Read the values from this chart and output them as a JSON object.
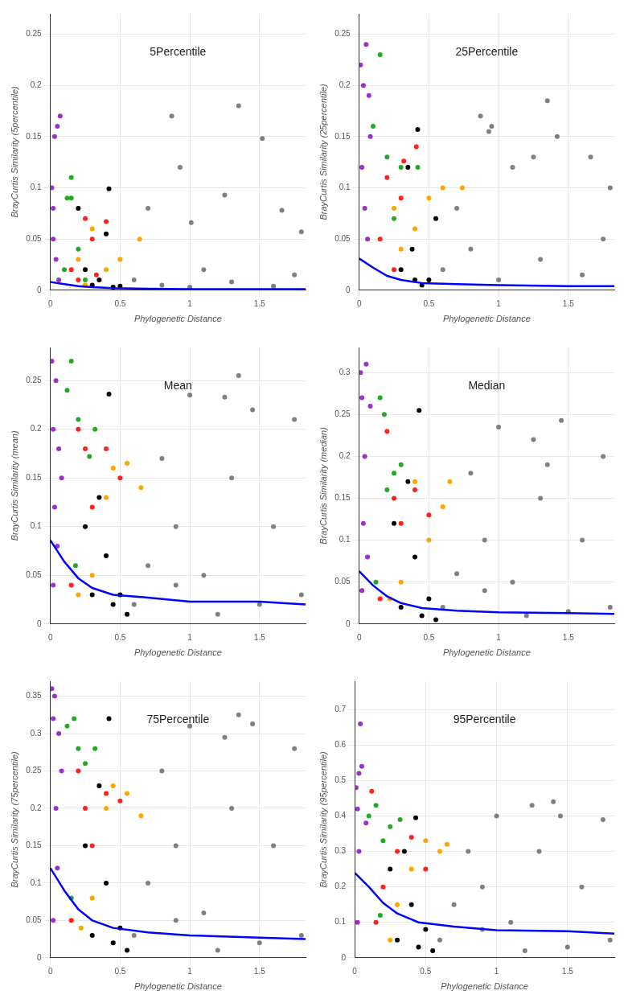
{
  "chart_data": [
    {
      "type": "scatter",
      "title": "5Percentile",
      "xlabel": "Phylogenetic Distance",
      "ylabel": "BrayCurtis Similarity (5percentile)",
      "xlim": [
        0,
        1.83
      ],
      "xticks": [
        0,
        0.5,
        1,
        1.5
      ],
      "ylim": [
        0,
        0.27
      ],
      "yticks": [
        0,
        0.05,
        0.1,
        0.15,
        0.2,
        0.25
      ],
      "grid": true,
      "marker": "circle",
      "series": [
        {
          "type": "scatter",
          "color": "#808080",
          "x": [
            0.6,
            0.8,
            0.87,
            0.93,
            1.01,
            1.1,
            1.25,
            1.35,
            1.52,
            1.66,
            1.8,
            0.7,
            1.0,
            1.3,
            1.6,
            1.75
          ],
          "values": [
            0.01,
            0.005,
            0.17,
            0.12,
            0.066,
            0.02,
            0.093,
            0.18,
            0.148,
            0.078,
            0.057,
            0.08,
            0.003,
            0.008,
            0.004,
            0.015
          ]
        },
        {
          "type": "scatter",
          "color": "#000000",
          "x": [
            0.3,
            0.35,
            0.4,
            0.42,
            0.45,
            0.5,
            0.25,
            0.2
          ],
          "values": [
            0.005,
            0.01,
            0.055,
            0.099,
            0.003,
            0.004,
            0.02,
            0.08
          ]
        },
        {
          "type": "scatter",
          "color": "#ffa500",
          "x": [
            0.2,
            0.3,
            0.4,
            0.5,
            0.64,
            0.25
          ],
          "values": [
            0.03,
            0.06,
            0.02,
            0.03,
            0.05,
            0.005
          ]
        },
        {
          "type": "scatter",
          "color": "#ff2020",
          "x": [
            0.15,
            0.25,
            0.3,
            0.4,
            0.2,
            0.33
          ],
          "values": [
            0.02,
            0.07,
            0.05,
            0.067,
            0.01,
            0.015
          ]
        },
        {
          "type": "scatter",
          "color": "#22aa22",
          "x": [
            0.12,
            0.15,
            0.15,
            0.2,
            0.1,
            0.25
          ],
          "values": [
            0.09,
            0.11,
            0.09,
            0.04,
            0.02,
            0.01
          ]
        },
        {
          "type": "scatter",
          "color": "#9932cc",
          "x": [
            0.01,
            0.02,
            0.03,
            0.05,
            0.07,
            0.02,
            0.04,
            0.06
          ],
          "values": [
            0.1,
            0.08,
            0.15,
            0.16,
            0.17,
            0.05,
            0.03,
            0.01
          ]
        },
        {
          "type": "line",
          "marker": "none",
          "color": "#0000ff",
          "x": [
            0,
            0.1,
            0.2,
            0.3,
            0.45,
            0.7,
            1.0,
            1.5,
            1.83
          ],
          "values": [
            0.008,
            0.006,
            0.004,
            0.003,
            0.002,
            0.0015,
            0.001,
            0.001,
            0.001
          ]
        }
      ]
    },
    {
      "type": "scatter",
      "title": "25Percentile",
      "xlabel": "Phylogenetic Distance",
      "ylabel": "BrayCurtis Similarity (25percentile)",
      "xlim": [
        0,
        1.83
      ],
      "xticks": [
        0,
        0.5,
        1,
        1.5
      ],
      "ylim": [
        0,
        0.27
      ],
      "yticks": [
        0,
        0.05,
        0.1,
        0.15,
        0.2,
        0.25
      ],
      "grid": true,
      "marker": "circle",
      "series": [
        {
          "type": "scatter",
          "color": "#808080",
          "x": [
            0.6,
            0.8,
            0.87,
            0.93,
            0.95,
            1.1,
            1.25,
            1.35,
            1.42,
            1.66,
            1.8,
            0.7,
            1.0,
            1.3,
            1.6,
            1.75
          ],
          "values": [
            0.02,
            0.04,
            0.17,
            0.155,
            0.16,
            0.12,
            0.13,
            0.185,
            0.15,
            0.13,
            0.1,
            0.08,
            0.01,
            0.03,
            0.015,
            0.05
          ]
        },
        {
          "type": "scatter",
          "color": "#000000",
          "x": [
            0.3,
            0.35,
            0.4,
            0.42,
            0.45,
            0.5,
            0.55,
            0.38
          ],
          "values": [
            0.02,
            0.12,
            0.01,
            0.157,
            0.005,
            0.01,
            0.07,
            0.04
          ]
        },
        {
          "type": "scatter",
          "color": "#ffa500",
          "x": [
            0.25,
            0.3,
            0.4,
            0.5,
            0.6,
            0.74
          ],
          "values": [
            0.08,
            0.04,
            0.06,
            0.09,
            0.1,
            0.1
          ]
        },
        {
          "type": "scatter",
          "color": "#ff2020",
          "x": [
            0.15,
            0.2,
            0.3,
            0.32,
            0.41,
            0.25
          ],
          "values": [
            0.05,
            0.11,
            0.09,
            0.126,
            0.14,
            0.02
          ]
        },
        {
          "type": "scatter",
          "color": "#22aa22",
          "x": [
            0.1,
            0.15,
            0.2,
            0.25,
            0.3,
            0.42
          ],
          "values": [
            0.16,
            0.23,
            0.13,
            0.07,
            0.12,
            0.12
          ]
        },
        {
          "type": "scatter",
          "color": "#9932cc",
          "x": [
            0.01,
            0.03,
            0.05,
            0.07,
            0.02,
            0.04,
            0.06,
            0.08
          ],
          "values": [
            0.22,
            0.2,
            0.24,
            0.19,
            0.12,
            0.08,
            0.05,
            0.15
          ]
        },
        {
          "type": "line",
          "marker": "none",
          "color": "#0000ff",
          "x": [
            0,
            0.1,
            0.2,
            0.3,
            0.45,
            0.7,
            1.0,
            1.5,
            1.83
          ],
          "values": [
            0.031,
            0.022,
            0.014,
            0.01,
            0.007,
            0.006,
            0.005,
            0.004,
            0.004
          ]
        }
      ]
    },
    {
      "type": "scatter",
      "title": "Mean",
      "xlabel": "Phylogenetic Distance",
      "ylabel": "BrayCurtis Similarity (mean)",
      "xlim": [
        0,
        1.83
      ],
      "xticks": [
        0,
        0.5,
        1,
        1.5
      ],
      "ylim": [
        0,
        0.284
      ],
      "yticks": [
        0,
        0.05,
        0.1,
        0.15,
        0.2,
        0.25
      ],
      "grid": true,
      "marker": "circle",
      "series": [
        {
          "type": "scatter",
          "color": "#808080",
          "x": [
            0.6,
            0.8,
            0.9,
            1.0,
            1.1,
            1.25,
            1.35,
            1.45,
            1.6,
            1.75,
            1.8,
            0.7,
            1.2,
            1.5,
            1.3,
            0.9
          ],
          "values": [
            0.02,
            0.17,
            0.1,
            0.235,
            0.05,
            0.233,
            0.255,
            0.22,
            0.1,
            0.21,
            0.03,
            0.06,
            0.01,
            0.02,
            0.15,
            0.04
          ]
        },
        {
          "type": "scatter",
          "color": "#000000",
          "x": [
            0.3,
            0.35,
            0.42,
            0.45,
            0.5,
            0.4,
            0.25,
            0.55
          ],
          "values": [
            0.03,
            0.13,
            0.236,
            0.02,
            0.03,
            0.07,
            0.1,
            0.01
          ]
        },
        {
          "type": "scatter",
          "color": "#ffa500",
          "x": [
            0.3,
            0.4,
            0.45,
            0.55,
            0.65,
            0.2
          ],
          "values": [
            0.05,
            0.13,
            0.16,
            0.165,
            0.14,
            0.03
          ]
        },
        {
          "type": "scatter",
          "color": "#ff2020",
          "x": [
            0.2,
            0.25,
            0.3,
            0.4,
            0.5,
            0.15
          ],
          "values": [
            0.2,
            0.18,
            0.12,
            0.18,
            0.15,
            0.04
          ]
        },
        {
          "type": "scatter",
          "color": "#22aa22",
          "x": [
            0.12,
            0.15,
            0.2,
            0.28,
            0.32,
            0.18
          ],
          "values": [
            0.24,
            0.27,
            0.21,
            0.172,
            0.2,
            0.06
          ]
        },
        {
          "type": "scatter",
          "color": "#9932cc",
          "x": [
            0.01,
            0.02,
            0.04,
            0.06,
            0.03,
            0.05,
            0.02,
            0.08
          ],
          "values": [
            0.27,
            0.2,
            0.25,
            0.18,
            0.12,
            0.08,
            0.04,
            0.15
          ]
        },
        {
          "type": "line",
          "marker": "none",
          "color": "#0000ff",
          "x": [
            0,
            0.1,
            0.2,
            0.3,
            0.45,
            0.7,
            1.0,
            1.5,
            1.83
          ],
          "values": [
            0.086,
            0.064,
            0.047,
            0.037,
            0.03,
            0.027,
            0.023,
            0.023,
            0.02
          ]
        }
      ]
    },
    {
      "type": "scatter",
      "title": "Median",
      "xlabel": "Phylogenetic Distance",
      "ylabel": "BrayCurtis Similarity (median)",
      "xlim": [
        0,
        1.83
      ],
      "xticks": [
        0,
        0.5,
        1,
        1.5
      ],
      "ylim": [
        0,
        0.33
      ],
      "yticks": [
        0,
        0.05,
        0.1,
        0.15,
        0.2,
        0.25,
        0.3
      ],
      "grid": true,
      "marker": "circle",
      "series": [
        {
          "type": "scatter",
          "color": "#808080",
          "x": [
            0.6,
            0.8,
            0.9,
            1.0,
            1.1,
            1.25,
            1.35,
            1.45,
            1.6,
            1.75,
            1.8,
            0.7,
            1.2,
            1.5,
            1.3,
            0.9
          ],
          "values": [
            0.02,
            0.18,
            0.1,
            0.235,
            0.05,
            0.22,
            0.19,
            0.243,
            0.1,
            0.2,
            0.02,
            0.06,
            0.01,
            0.015,
            0.15,
            0.04
          ]
        },
        {
          "type": "scatter",
          "color": "#000000",
          "x": [
            0.3,
            0.35,
            0.43,
            0.45,
            0.5,
            0.4,
            0.25,
            0.55
          ],
          "values": [
            0.02,
            0.17,
            0.255,
            0.01,
            0.03,
            0.08,
            0.12,
            0.005
          ]
        },
        {
          "type": "scatter",
          "color": "#ffa500",
          "x": [
            0.3,
            0.4,
            0.5,
            0.6,
            0.65,
            0.22
          ],
          "values": [
            0.05,
            0.17,
            0.1,
            0.14,
            0.17,
            0.03
          ]
        },
        {
          "type": "scatter",
          "color": "#ff2020",
          "x": [
            0.2,
            0.25,
            0.3,
            0.4,
            0.5,
            0.15
          ],
          "values": [
            0.23,
            0.15,
            0.12,
            0.16,
            0.13,
            0.03
          ]
        },
        {
          "type": "scatter",
          "color": "#22aa22",
          "x": [
            0.15,
            0.18,
            0.2,
            0.25,
            0.3,
            0.12
          ],
          "values": [
            0.27,
            0.25,
            0.16,
            0.18,
            0.19,
            0.05
          ]
        },
        {
          "type": "scatter",
          "color": "#9932cc",
          "x": [
            0.01,
            0.02,
            0.05,
            0.04,
            0.03,
            0.06,
            0.02,
            0.08
          ],
          "values": [
            0.3,
            0.27,
            0.31,
            0.2,
            0.12,
            0.08,
            0.04,
            0.26
          ]
        },
        {
          "type": "line",
          "marker": "none",
          "color": "#0000ff",
          "x": [
            0,
            0.1,
            0.2,
            0.3,
            0.45,
            0.7,
            1.0,
            1.5,
            1.83
          ],
          "values": [
            0.063,
            0.046,
            0.033,
            0.025,
            0.019,
            0.016,
            0.014,
            0.013,
            0.012
          ]
        }
      ]
    },
    {
      "type": "scatter",
      "title": "75Percentile",
      "xlabel": "Phylogenetic Distance",
      "ylabel": "BrayCurtis Similarity (75percentile)",
      "xlim": [
        0,
        1.83
      ],
      "xticks": [
        0,
        0.5,
        1,
        1.5
      ],
      "ylim": [
        0,
        0.37
      ],
      "yticks": [
        0,
        0.05,
        0.1,
        0.15,
        0.2,
        0.25,
        0.3,
        0.35
      ],
      "grid": true,
      "marker": "circle",
      "series": [
        {
          "type": "scatter",
          "color": "#808080",
          "x": [
            0.6,
            0.8,
            0.9,
            1.0,
            1.1,
            1.25,
            1.35,
            1.45,
            1.6,
            1.75,
            1.8,
            0.7,
            1.2,
            1.5,
            1.3,
            0.9
          ],
          "values": [
            0.03,
            0.25,
            0.15,
            0.31,
            0.06,
            0.295,
            0.325,
            0.313,
            0.15,
            0.28,
            0.03,
            0.1,
            0.01,
            0.02,
            0.2,
            0.05
          ]
        },
        {
          "type": "scatter",
          "color": "#000000",
          "x": [
            0.3,
            0.35,
            0.42,
            0.45,
            0.5,
            0.4,
            0.25,
            0.55
          ],
          "values": [
            0.03,
            0.23,
            0.32,
            0.02,
            0.04,
            0.1,
            0.15,
            0.01
          ]
        },
        {
          "type": "scatter",
          "color": "#ffa500",
          "x": [
            0.3,
            0.4,
            0.45,
            0.55,
            0.65,
            0.22
          ],
          "values": [
            0.08,
            0.2,
            0.23,
            0.22,
            0.19,
            0.04
          ]
        },
        {
          "type": "scatter",
          "color": "#ff2020",
          "x": [
            0.2,
            0.25,
            0.3,
            0.4,
            0.5,
            0.15
          ],
          "values": [
            0.25,
            0.2,
            0.15,
            0.22,
            0.21,
            0.05
          ]
        },
        {
          "type": "scatter",
          "color": "#22aa22",
          "x": [
            0.12,
            0.17,
            0.2,
            0.25,
            0.32,
            0.15
          ],
          "values": [
            0.31,
            0.32,
            0.28,
            0.26,
            0.28,
            0.08
          ]
        },
        {
          "type": "scatter",
          "color": "#9932cc",
          "x": [
            0.01,
            0.02,
            0.03,
            0.06,
            0.04,
            0.05,
            0.02,
            0.08
          ],
          "values": [
            0.36,
            0.32,
            0.35,
            0.3,
            0.2,
            0.12,
            0.05,
            0.25
          ]
        },
        {
          "type": "line",
          "marker": "none",
          "color": "#0000ff",
          "x": [
            0,
            0.1,
            0.2,
            0.3,
            0.45,
            0.7,
            1.0,
            1.5,
            1.83
          ],
          "values": [
            0.12,
            0.09,
            0.065,
            0.05,
            0.04,
            0.034,
            0.03,
            0.027,
            0.025
          ]
        }
      ]
    },
    {
      "type": "scatter",
      "title": "95Percentile",
      "xlabel": "Phylogenetic Distance",
      "ylabel": "BrayCurtis Similarity (95percentile)",
      "xlim": [
        0,
        1.83
      ],
      "xticks": [
        0,
        0.5,
        1,
        1.5
      ],
      "ylim": [
        0,
        0.78
      ],
      "yticks": [
        0,
        0.1,
        0.2,
        0.3,
        0.4,
        0.5,
        0.6,
        0.7
      ],
      "grid": true,
      "marker": "circle",
      "series": [
        {
          "type": "scatter",
          "color": "#808080",
          "x": [
            0.6,
            0.8,
            0.9,
            1.0,
            1.1,
            1.25,
            1.4,
            1.45,
            1.6,
            1.75,
            1.8,
            0.7,
            1.2,
            1.5,
            1.3,
            0.9
          ],
          "values": [
            0.05,
            0.3,
            0.2,
            0.4,
            0.1,
            0.43,
            0.44,
            0.4,
            0.2,
            0.39,
            0.05,
            0.15,
            0.02,
            0.03,
            0.3,
            0.08
          ]
        },
        {
          "type": "scatter",
          "color": "#000000",
          "x": [
            0.3,
            0.35,
            0.43,
            0.45,
            0.5,
            0.4,
            0.25,
            0.55
          ],
          "values": [
            0.05,
            0.3,
            0.395,
            0.03,
            0.08,
            0.15,
            0.25,
            0.02
          ]
        },
        {
          "type": "scatter",
          "color": "#ffa500",
          "x": [
            0.3,
            0.4,
            0.5,
            0.6,
            0.65,
            0.25
          ],
          "values": [
            0.15,
            0.25,
            0.33,
            0.3,
            0.32,
            0.05
          ]
        },
        {
          "type": "scatter",
          "color": "#ff2020",
          "x": [
            0.12,
            0.2,
            0.3,
            0.4,
            0.5,
            0.15
          ],
          "values": [
            0.47,
            0.2,
            0.3,
            0.34,
            0.25,
            0.1
          ]
        },
        {
          "type": "scatter",
          "color": "#22aa22",
          "x": [
            0.1,
            0.15,
            0.2,
            0.25,
            0.32,
            0.18
          ],
          "values": [
            0.4,
            0.43,
            0.33,
            0.37,
            0.39,
            0.12
          ]
        },
        {
          "type": "scatter",
          "color": "#9932cc",
          "x": [
            0.01,
            0.02,
            0.03,
            0.04,
            0.05,
            0.03,
            0.02,
            0.08
          ],
          "values": [
            0.48,
            0.42,
            0.52,
            0.66,
            0.54,
            0.3,
            0.1,
            0.38
          ]
        },
        {
          "type": "line",
          "marker": "none",
          "color": "#0000ff",
          "x": [
            0,
            0.1,
            0.2,
            0.3,
            0.45,
            0.7,
            1.0,
            1.5,
            1.83
          ],
          "values": [
            0.24,
            0.2,
            0.155,
            0.125,
            0.1,
            0.088,
            0.078,
            0.075,
            0.068
          ]
        }
      ]
    }
  ]
}
